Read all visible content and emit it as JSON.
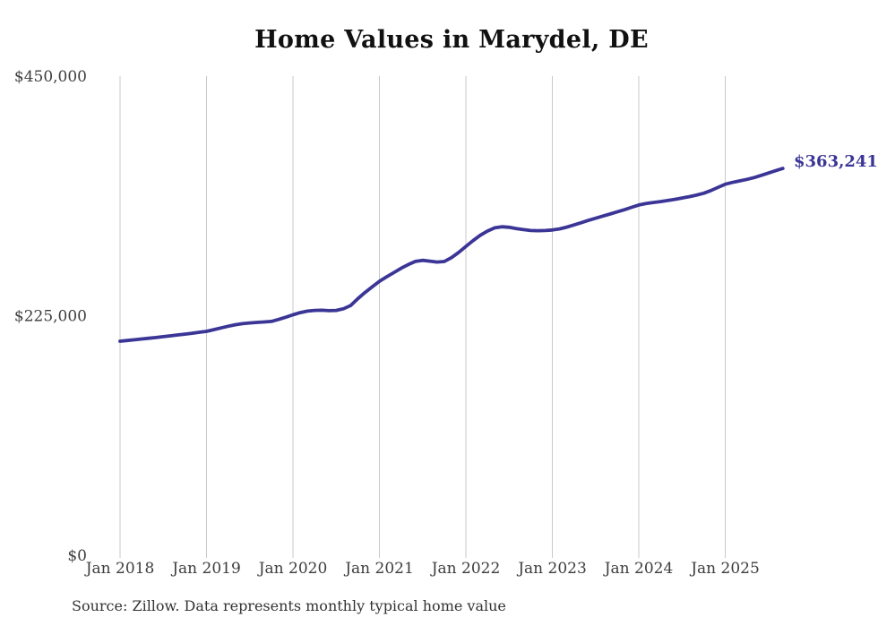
{
  "title": "Home Values in Marydel, DE",
  "end_label": "$363,241",
  "source_note": "Source: Zillow. Data represents monthly typical home value",
  "colors": {
    "line": "#3B3596",
    "end_label": "#3B3596",
    "grid": "#c9c9c9",
    "axis_text": "#3d3d3d",
    "title_text": "#111111",
    "background": "#ffffff"
  },
  "chart_data": {
    "type": "line",
    "title": "Home Values in Marydel, DE",
    "xlabel": "",
    "ylabel": "",
    "ylim": [
      0,
      450000
    ],
    "grid": "vertical-only",
    "legend": "none",
    "unit": "USD",
    "x_start": "2018-01",
    "x_end": "2025-09",
    "x_interval": "monthly",
    "x_tick_labels": [
      "Jan 2018",
      "Jan 2019",
      "Jan 2020",
      "Jan 2021",
      "Jan 2022",
      "Jan 2023",
      "Jan 2024",
      "Jan 2025"
    ],
    "y_ticks": [
      {
        "label": "$0",
        "value": 0
      },
      {
        "label": "$225,000",
        "value": 225000
      },
      {
        "label": "$450,000",
        "value": 450000
      }
    ],
    "final_value": 363241,
    "series": [
      {
        "name": "Typical home value",
        "values": [
          201000,
          201700,
          202400,
          203100,
          203800,
          204500,
          205300,
          206100,
          206900,
          207700,
          208500,
          209400,
          210300,
          211900,
          213500,
          215100,
          216500,
          217500,
          218200,
          218700,
          219100,
          219600,
          221500,
          223600,
          225800,
          227900,
          229300,
          230000,
          230100,
          229700,
          230000,
          231500,
          234500,
          241000,
          246800,
          252200,
          257300,
          261500,
          265500,
          269500,
          273000,
          276000,
          277000,
          276200,
          275400,
          275900,
          279500,
          284500,
          290000,
          295500,
          300500,
          304500,
          307500,
          308500,
          308000,
          306800,
          305800,
          305000,
          304800,
          305000,
          305500,
          306500,
          308200,
          310200,
          312300,
          314500,
          316500,
          318500,
          320500,
          322500,
          324500,
          326800,
          329000,
          330300,
          331300,
          332200,
          333200,
          334300,
          335500,
          336800,
          338200,
          340000,
          342500,
          345500,
          348500,
          350200,
          351600,
          353000,
          354700,
          356800,
          359000,
          361200,
          363241
        ]
      }
    ]
  }
}
